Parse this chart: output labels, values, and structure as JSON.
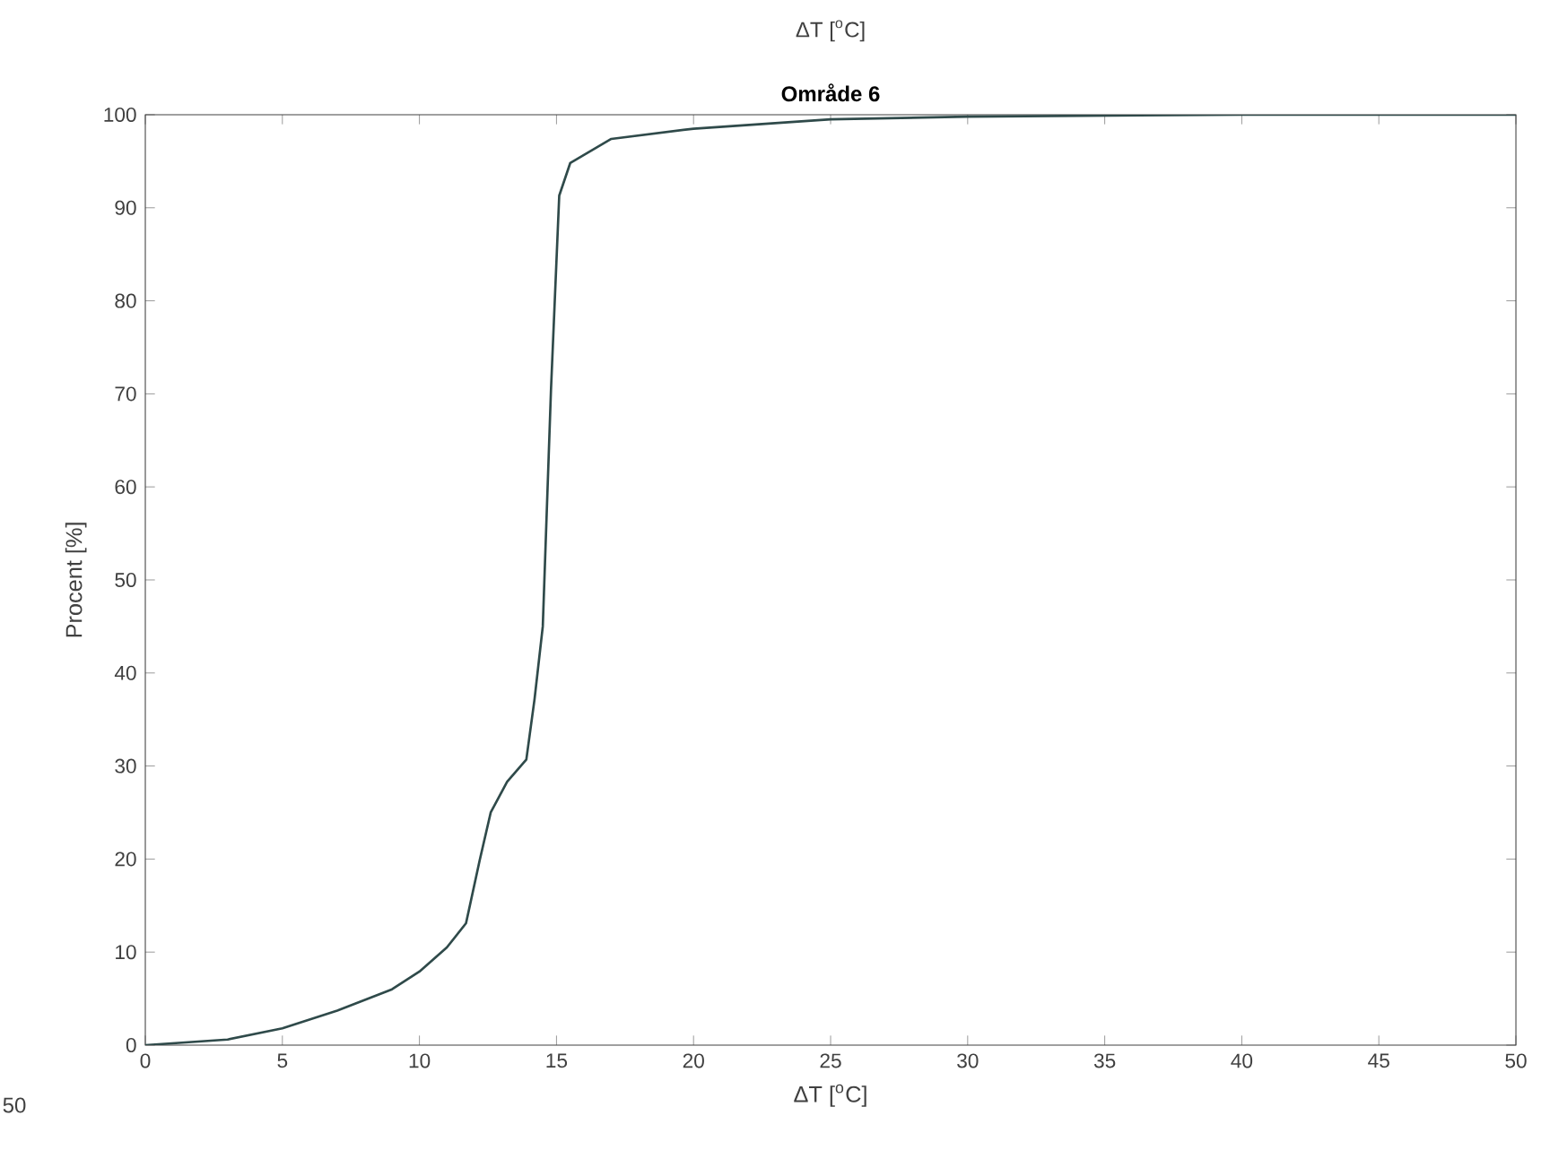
{
  "chart_data": {
    "type": "line",
    "title": "Område 6",
    "xlabel": "ΔT [$^{o}$C]",
    "ylabel": "Procent [%]",
    "annotations": [
      "ΔT [$^{o}$C]",
      "50"
    ],
    "x": [
      0,
      3,
      5,
      7,
      9,
      10,
      11,
      11.7,
      12.2,
      12.6,
      13.2,
      13.9,
      14.2,
      14.5,
      14.8,
      15.1,
      15.5,
      17,
      20,
      25,
      30,
      40,
      50
    ],
    "series": [
      {
        "color": "#2f4a4a",
        "values": [
          0,
          0.6,
          1.8,
          3.7,
          6,
          7.9,
          10.5,
          13.1,
          19.9,
          25,
          28.3,
          30.7,
          37.2,
          45,
          70.5,
          91.3,
          94.8,
          97.4,
          98.5,
          99.5,
          99.8,
          100,
          100
        ]
      }
    ],
    "xlim": [
      0,
      50
    ],
    "ylim": [
      0,
      100
    ],
    "xticks": [
      0,
      5,
      10,
      15,
      20,
      25,
      30,
      35,
      40,
      45,
      50
    ],
    "yticks": [
      0,
      10,
      20,
      30,
      40,
      50,
      60,
      70,
      80,
      90,
      100
    ]
  }
}
